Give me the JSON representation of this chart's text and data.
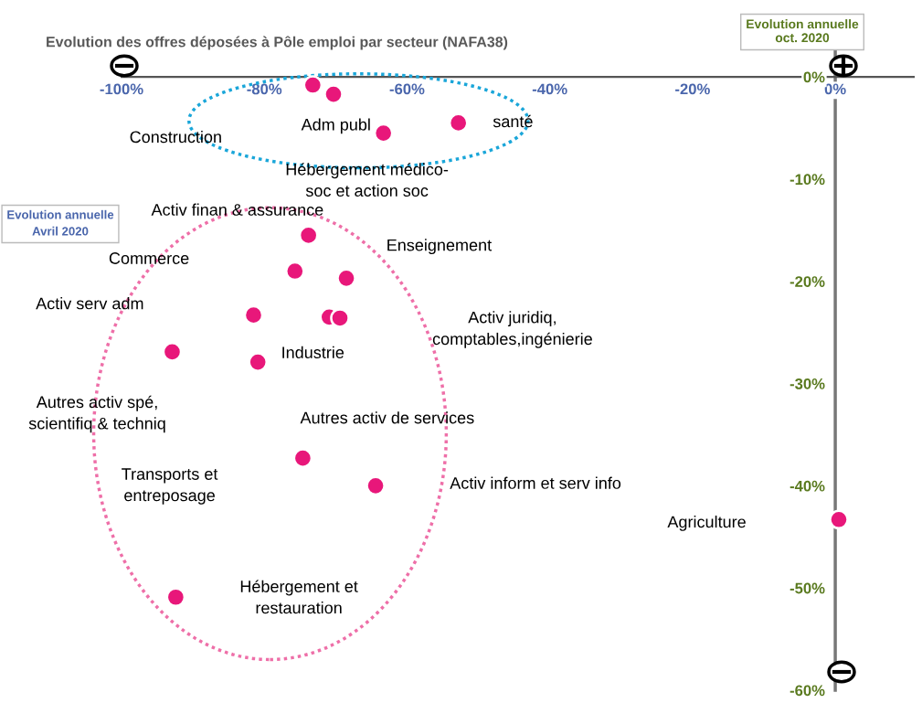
{
  "chart_data": {
    "type": "scatter",
    "title": "Evolution des offres déposées à Pôle emploi par secteur (NAFA38)",
    "xlabel": "Evolution annuelle\nAvril 2020",
    "ylabel": "Evolution annuelle\noct. 2020",
    "series": [
      {
        "color": "#e8177a",
        "x": [
          -73.2,
          -70.3,
          -63.3,
          -52.8,
          -73.8,
          -75.7,
          -68.5,
          -81.5,
          -70.9,
          -69.4,
          -92.9,
          -80.9,
          -74.6,
          -64.4,
          0.5,
          -92.4
        ],
        "values": [
          -0.8,
          -1.7,
          -5.5,
          -4.5,
          -15.5,
          -19.0,
          -19.7,
          -23.3,
          -23.5,
          -23.6,
          -26.9,
          -27.9,
          -37.3,
          -40.0,
          -43.3,
          -50.9
        ]
      }
    ],
    "annotations": [
      "Construction",
      "Adm publ",
      "Hébergement médico-\nsoc et action soc",
      "santé",
      "Activ finan & assurance",
      "Commerce",
      "Enseignement",
      "Activ serv adm",
      "Industrie",
      "Activ juridiq,\ncomptables,ingénierie",
      "Autres activ spé,\nscientifiq & techniq",
      "Autres activ de services",
      "Transports et\nentreposage",
      "Activ inform et serv info",
      "Agriculture",
      "Hébergement et\nrestauration"
    ],
    "xlim": [
      -100,
      11
    ],
    "ylim": [
      -60,
      6
    ],
    "xticks": [
      {
        "value": -100,
        "label": "-100%"
      },
      {
        "value": -80,
        "label": "-80%"
      },
      {
        "value": -60,
        "label": "-60%"
      },
      {
        "value": -40,
        "label": "-40%"
      },
      {
        "value": -20,
        "label": "-20%"
      },
      {
        "value": 0,
        "label": "0%"
      }
    ],
    "yticks": [
      {
        "value": 0,
        "label": "0%"
      },
      {
        "value": -10,
        "label": "-10%"
      },
      {
        "value": -20,
        "label": "-20%"
      },
      {
        "value": -30,
        "label": "-30%"
      },
      {
        "value": -40,
        "label": "-40%"
      },
      {
        "value": -50,
        "label": "-50%"
      },
      {
        "value": -60,
        "label": "-60%"
      }
    ],
    "marker": "circle",
    "grid": false,
    "legend": false
  }
}
